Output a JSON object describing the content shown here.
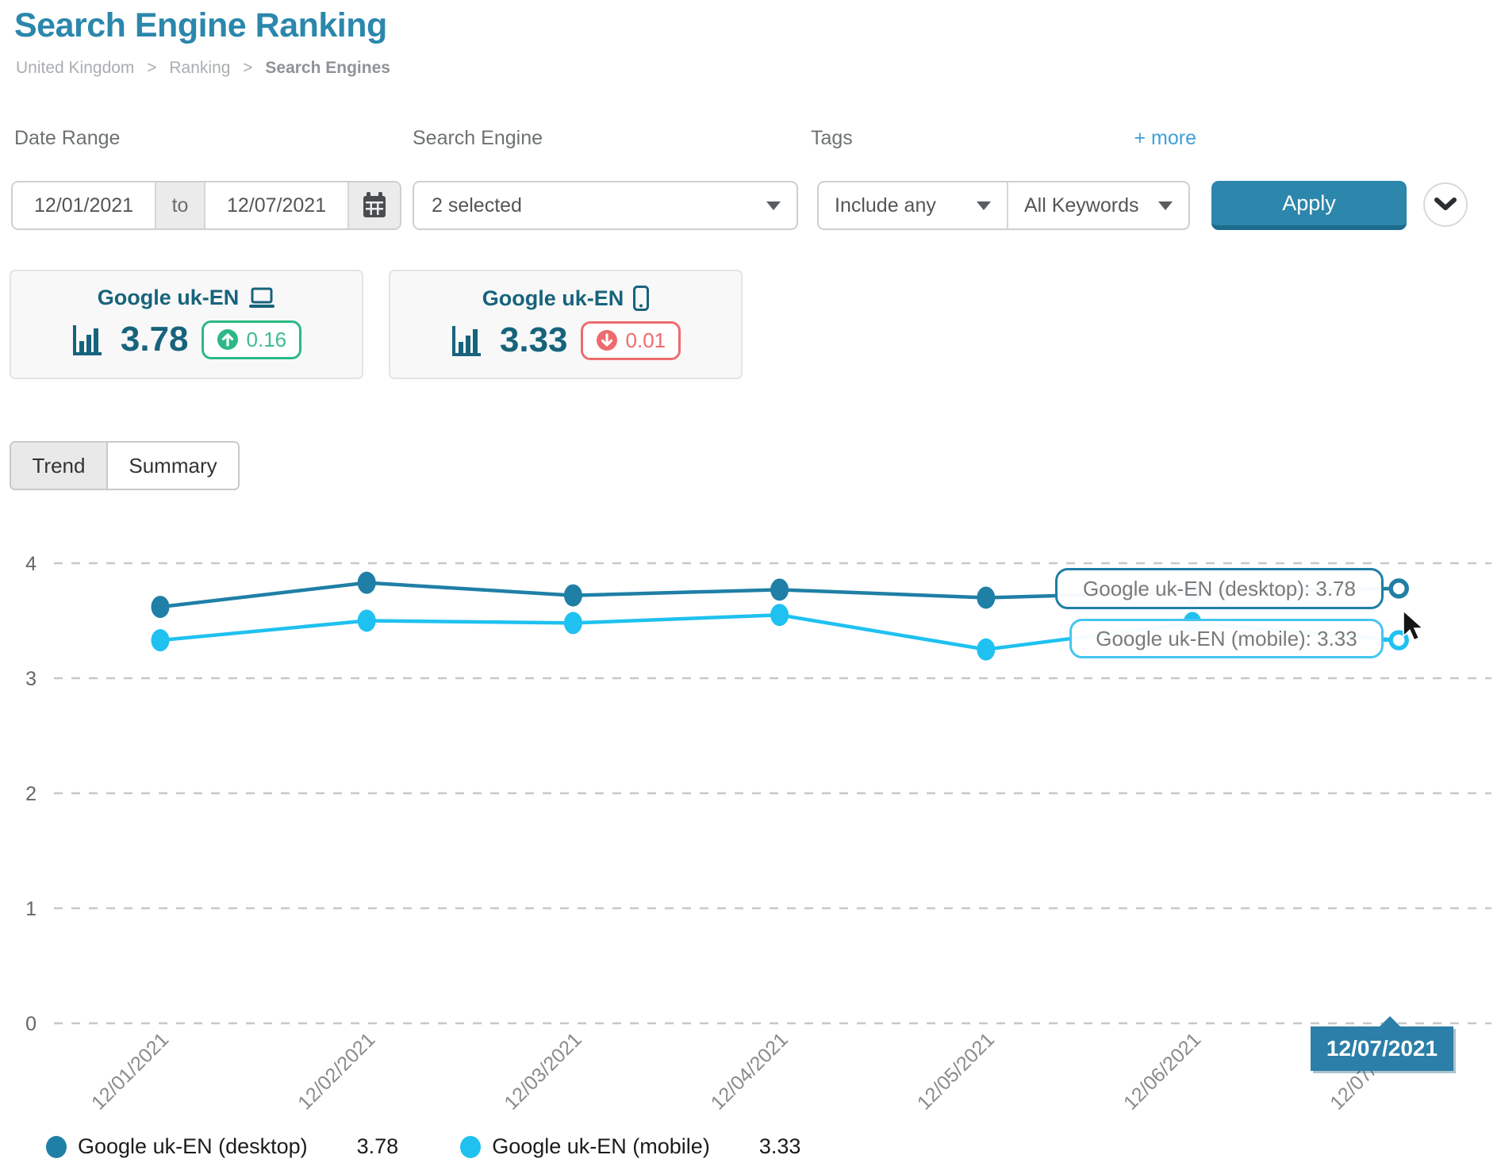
{
  "header": {
    "title": "Search Engine Ranking",
    "breadcrumb": [
      "United Kingdom",
      "Ranking",
      "Search Engines"
    ],
    "breadcrumb_sep": ">"
  },
  "filters": {
    "date_range": {
      "label": "Date Range",
      "from": "12/01/2021",
      "to_label": "to",
      "to": "12/07/2021"
    },
    "search_engine": {
      "label": "Search Engine",
      "value": "2 selected"
    },
    "tags": {
      "label": "Tags",
      "mode": "Include any",
      "keywords": "All Keywords"
    },
    "more_link": "+ more",
    "apply_label": "Apply"
  },
  "cards": [
    {
      "title": "Google uk-EN",
      "device": "desktop",
      "value": "3.78",
      "delta": "0.16",
      "direction": "up"
    },
    {
      "title": "Google uk-EN",
      "device": "mobile",
      "value": "3.33",
      "delta": "0.01",
      "direction": "down"
    }
  ],
  "tabs": [
    {
      "label": "Trend",
      "active": true
    },
    {
      "label": "Summary",
      "active": false
    }
  ],
  "chart_data": {
    "type": "line",
    "x": [
      "12/01/2021",
      "12/02/2021",
      "12/03/2021",
      "12/04/2021",
      "12/05/2021",
      "12/06/2021",
      "12/07/2021"
    ],
    "series": [
      {
        "name": "Google uk-EN (desktop)",
        "color": "#1f7fa6",
        "values": [
          3.62,
          3.83,
          3.72,
          3.77,
          3.7,
          3.75,
          3.78
        ]
      },
      {
        "name": "Google uk-EN (mobile)",
        "color": "#1fc1f0",
        "values": [
          3.33,
          3.5,
          3.48,
          3.55,
          3.25,
          3.48,
          3.33
        ]
      }
    ],
    "ylim": [
      0,
      4
    ],
    "yticks": [
      0,
      1,
      2,
      3,
      4
    ],
    "grid": "horizontal-dashed",
    "legend_position": "bottom-left",
    "tooltips": [
      "Google uk-EN (desktop): 3.78",
      "Google uk-EN (mobile): 3.33"
    ],
    "selected_x_label": "12/07/2021",
    "legend": [
      {
        "name": "Google uk-EN (desktop)",
        "value": "3.78"
      },
      {
        "name": "Google uk-EN (mobile)",
        "value": "3.33"
      }
    ]
  }
}
